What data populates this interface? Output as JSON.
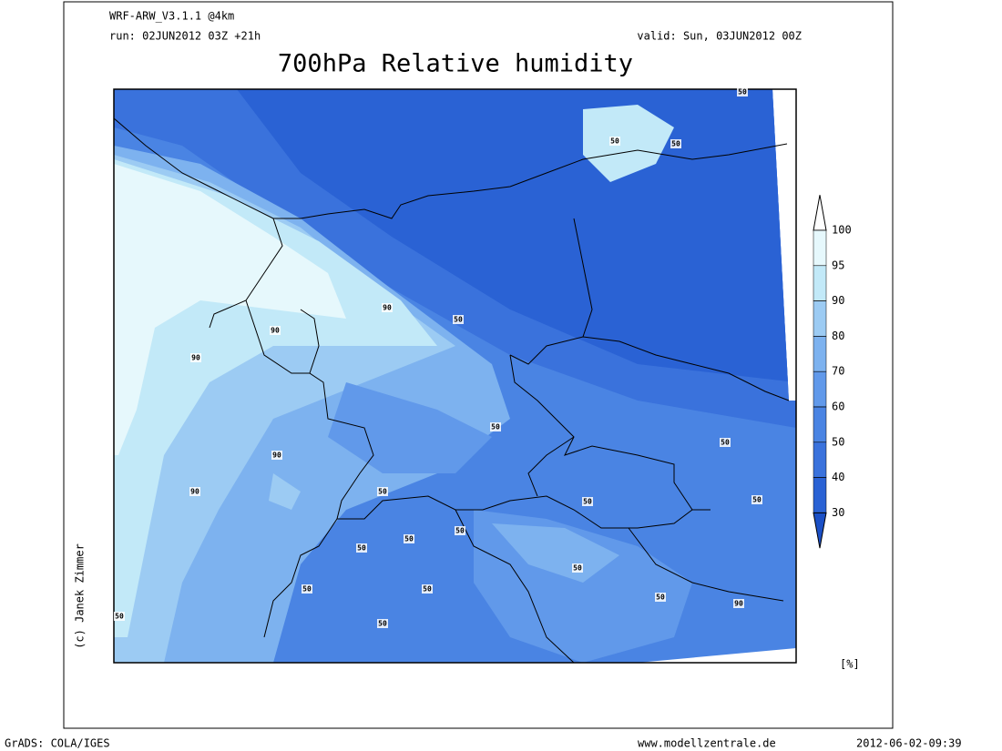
{
  "header": {
    "model": "WRF-ARW_V3.1.1 @4km",
    "run": "run: 02JUN2012 03Z +21h",
    "valid": "valid: Sun, 03JUN2012 00Z"
  },
  "title": "700hPa Relative humidity",
  "colorbar": {
    "levels": [
      100,
      95,
      90,
      80,
      70,
      60,
      50,
      40,
      30
    ],
    "colors": [
      "#ffffff",
      "#e6f8fc",
      "#c2e9f8",
      "#9ccbf3",
      "#7db2ef",
      "#6199ea",
      "#4a84e3",
      "#3a72dc",
      "#2a62d4",
      "#1b50c6"
    ],
    "unit": "[%]"
  },
  "map": {
    "contour_labels": [
      50,
      50,
      50,
      90,
      50,
      90,
      90,
      50,
      50,
      90,
      90,
      50,
      50,
      50,
      50,
      50,
      50,
      50,
      50,
      50,
      50,
      90,
      50,
      50
    ]
  },
  "copyright": "(c) Janek Zimmer",
  "footer": {
    "software": "GrADS: COLA/IGES",
    "website": "www.modellzentrale.de",
    "timestamp": "2012-06-02-09:39"
  }
}
